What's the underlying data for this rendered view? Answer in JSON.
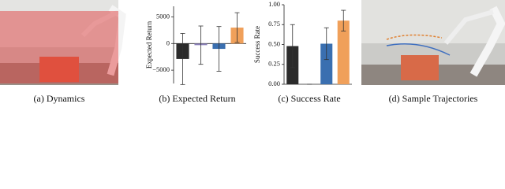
{
  "captions": [
    "(a) Dynamics",
    "(b) Expected Return",
    "(c) Success Rate",
    "(d) Sample Trajectories"
  ],
  "chart_data": [
    {
      "type": "bar",
      "y_label": "Expected Return",
      "categories": [
        null,
        null,
        null,
        null
      ],
      "values": [
        -2900,
        -300,
        -1000,
        3000
      ],
      "errors": [
        4800,
        3600,
        4200,
        2800
      ],
      "colors": [
        "#2b2b2b",
        "#8a80b8",
        "#3a6fb0",
        "#f0a05a"
      ],
      "ylim": [
        -7500,
        7000
      ],
      "yticks": [
        {
          "value": -5000,
          "label": "−5000"
        },
        0,
        5000
      ]
    },
    {
      "type": "bar",
      "y_label": "Success Rate",
      "categories": [
        null,
        null,
        null,
        null
      ],
      "values": [
        0.48,
        0.0,
        0.51,
        0.8
      ],
      "errors": [
        0.27,
        0,
        0.2,
        0.13
      ],
      "colors": [
        "#2b2b2b",
        "#8a80b8",
        "#3a6fb0",
        "#f0a05a"
      ],
      "ylim": [
        0,
        1.0
      ],
      "yticks": [
        {
          "value": 0,
          "label": "0.00"
        },
        {
          "value": 0.25,
          "label": "0.25"
        },
        {
          "value": 0.5,
          "label": "0.50"
        },
        {
          "value": 0.75,
          "label": "0.75"
        },
        {
          "value": 1.0,
          "label": "1.00"
        }
      ]
    }
  ]
}
